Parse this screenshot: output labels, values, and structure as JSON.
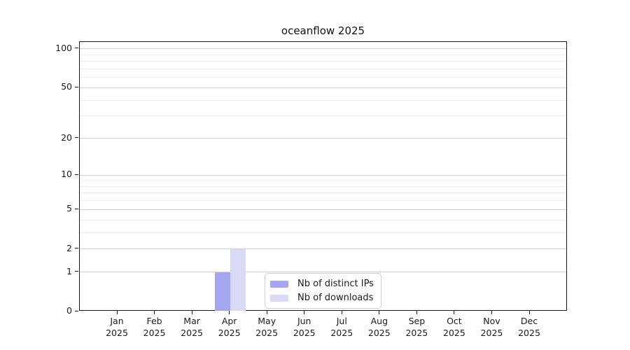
{
  "chart_data": {
    "type": "bar",
    "title": "oceanflow 2025",
    "categories": [
      "Jan 2025",
      "Feb 2025",
      "Mar 2025",
      "Apr 2025",
      "May 2025",
      "Jun 2025",
      "Jul 2025",
      "Aug 2025",
      "Sep 2025",
      "Oct 2025",
      "Nov 2025",
      "Dec 2025"
    ],
    "series": [
      {
        "name": "Nb of distinct IPs",
        "color": "#a6a6f2",
        "values": [
          0,
          0,
          0,
          1,
          0,
          0,
          0,
          0,
          0,
          0,
          0,
          0
        ]
      },
      {
        "name": "Nb of downloads",
        "color": "#d9d9f8",
        "values": [
          0,
          0,
          0,
          2,
          0,
          0,
          0,
          0,
          0,
          0,
          0,
          0
        ]
      }
    ],
    "xlabel": "",
    "ylabel": "",
    "y_axis": {
      "scale": "symlog ln(1+v)",
      "major_ticks": [
        0,
        1,
        2,
        5,
        10,
        20,
        50,
        100
      ],
      "minor_ticks": [
        3,
        4,
        6,
        7,
        8,
        9,
        30,
        40,
        60,
        70,
        80,
        90
      ],
      "ylim": [
        0,
        113
      ]
    },
    "grid": "horizontal major+minor, no vertical",
    "legend": {
      "position": "lower center inside plot"
    },
    "colors": {
      "major_grid": "#d2d2d2",
      "minor_grid": "#ececec",
      "spine": "#1a1a1a",
      "text": "#1a1a1a",
      "background": "#ffffff"
    }
  }
}
